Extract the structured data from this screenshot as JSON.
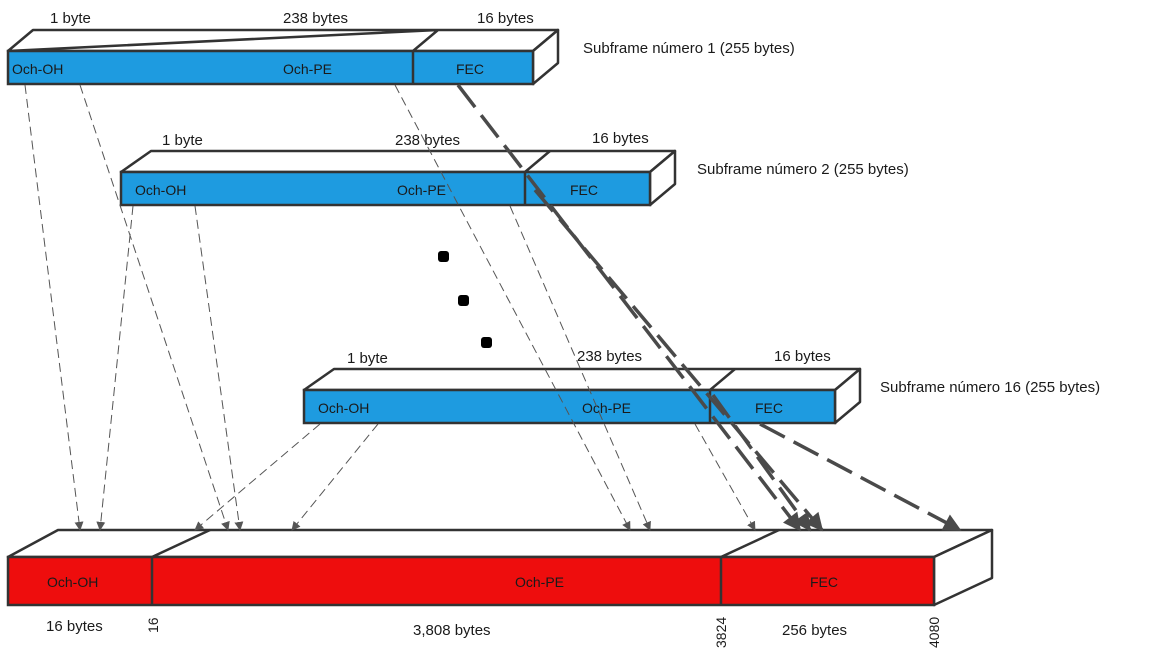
{
  "subframes": [
    {
      "title": "Subframe número 1 (255 bytes)",
      "top_labels": {
        "oh": "1 byte",
        "pe": "238 bytes",
        "fec": "16 bytes"
      },
      "fields": {
        "oh": "Och-OH",
        "pe": "Och-PE",
        "fec": "FEC"
      }
    },
    {
      "title": "Subframe número 2 (255 bytes)",
      "top_labels": {
        "oh": "1 byte",
        "pe": "238 bytes",
        "fec": "16 bytes"
      },
      "fields": {
        "oh": "Och-OH",
        "pe": "Och-PE",
        "fec": "FEC"
      }
    },
    {
      "title": "Subframe número 16 (255 bytes)",
      "top_labels": {
        "oh": "1 byte",
        "pe": "238 bytes",
        "fec": "16 bytes"
      },
      "fields": {
        "oh": "Och-OH",
        "pe": "Och-PE",
        "fec": "FEC"
      }
    }
  ],
  "frame": {
    "fields": {
      "oh": "Och-OH",
      "pe": "Och-PE",
      "fec": "FEC"
    },
    "bottom_labels": {
      "oh": "16 bytes",
      "pe": "3,808 bytes",
      "fec": "256 bytes"
    },
    "markers": {
      "m16": "16",
      "m3824": "3824",
      "m4080": "4080"
    }
  },
  "colors": {
    "subframe_fill": "#1e9be0",
    "frame_fill": "#ee0d0d",
    "outline": "#333333"
  }
}
